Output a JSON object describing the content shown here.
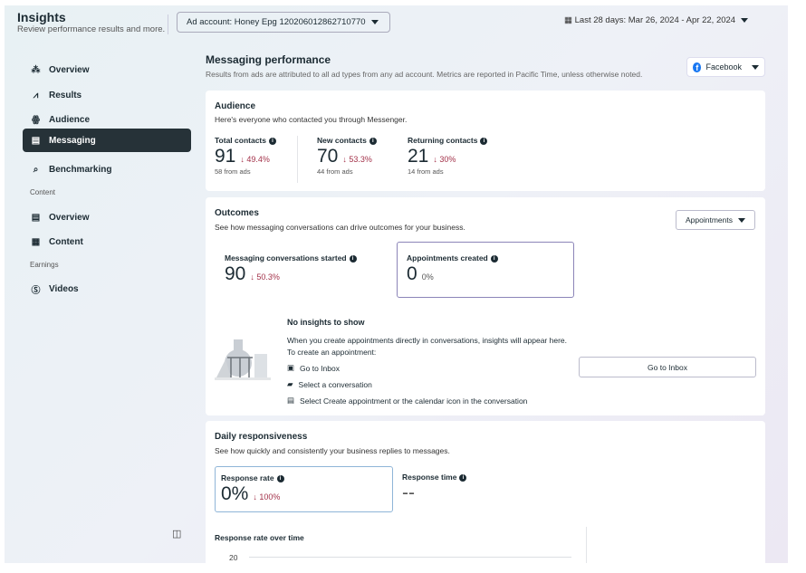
{
  "header": {
    "title": "Insights",
    "subtitle": "Review performance results and more.",
    "ad_account": "Ad account: Honey Epg 120206012862710770",
    "date_range": "Last 28 days: Mar 26, 2024 - Apr 22, 2024"
  },
  "sidebar": {
    "items": [
      {
        "label": "Overview",
        "icon": "overview-icon"
      },
      {
        "label": "Results",
        "icon": "results-icon"
      },
      {
        "label": "Audience",
        "icon": "audience-icon"
      },
      {
        "label": "Messaging",
        "icon": "messaging-icon",
        "active": true
      },
      {
        "label": "Benchmarking",
        "icon": "benchmarking-icon"
      }
    ],
    "content_section": "Content",
    "content_items": [
      {
        "label": "Overview"
      },
      {
        "label": "Content"
      }
    ],
    "earnings_section": "Earnings",
    "earnings_items": [
      {
        "label": "Videos"
      }
    ]
  },
  "main": {
    "title": "Messaging performance",
    "note": "Results from ads are attributed to all ad types from any ad account. Metrics are reported in Pacific Time, unless otherwise noted.",
    "platform": "Facebook",
    "audience": {
      "title": "Audience",
      "subtitle": "Here's everyone who contacted you through Messenger.",
      "metrics": [
        {
          "label": "Total contacts",
          "value": "91",
          "change": "49.4%",
          "from_ads": "58 from ads"
        },
        {
          "label": "New contacts",
          "value": "70",
          "change": "53.3%",
          "from_ads": "44 from ads"
        },
        {
          "label": "Returning contacts",
          "value": "21",
          "change": "30%",
          "from_ads": "14 from ads"
        }
      ]
    },
    "outcomes": {
      "title": "Outcomes",
      "subtitle": "See how messaging conversations can drive outcomes for your business.",
      "dropdown": "Appointments",
      "metrics": [
        {
          "label": "Messaging conversations started",
          "value": "90",
          "change": "50.3%"
        },
        {
          "label": "Appointments created",
          "value": "0",
          "change": "0%"
        }
      ],
      "empty_title": "No insights to show",
      "empty_text": "When you create appointments directly in conversations, insights will appear here. To create an appointment:",
      "steps": [
        "Go to Inbox",
        "Select a conversation",
        "Select Create appointment or the calendar icon in the conversation"
      ],
      "inbox_button": "Go to Inbox"
    },
    "daily": {
      "title": "Daily responsiveness",
      "subtitle": "See how quickly and consistently your business replies to messages.",
      "response_rate": {
        "label": "Response rate",
        "value": "0%",
        "change": "100%"
      },
      "response_time": {
        "label": "Response time",
        "value": "--"
      },
      "chart_title": "Response rate over time",
      "y_tick": "20"
    }
  }
}
